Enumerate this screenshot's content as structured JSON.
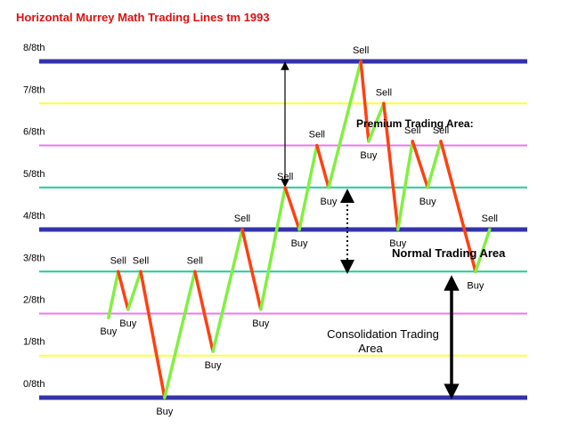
{
  "chart_data": {
    "type": "line",
    "title": "Horizontal Murrey Math Trading Lines tm 1993",
    "ylim": [
      -0.25,
      8.5
    ],
    "yticks": [
      {
        "value": 0,
        "label": "0/8th"
      },
      {
        "value": 1,
        "label": "1/8th"
      },
      {
        "value": 2,
        "label": "2/8th"
      },
      {
        "value": 3,
        "label": "3/8th"
      },
      {
        "value": 4,
        "label": "4/8th"
      },
      {
        "value": 5,
        "label": "5/8th"
      },
      {
        "value": 6,
        "label": "6/8th"
      },
      {
        "value": 7,
        "label": "7/8th"
      },
      {
        "value": 8,
        "label": "8/8th"
      }
    ],
    "level_colors": [
      "#3333aa",
      "#ffff33",
      "#ee77ee",
      "#22cc99",
      "#3333aa",
      "#22cc99",
      "#ee77ee",
      "#ffff33",
      "#3333aa"
    ],
    "xlim": [
      0,
      100
    ],
    "x": [
      14.2,
      16.2,
      18.2,
      20.8,
      25.7,
      31.9,
      35.6,
      41.6,
      45.4,
      50.4,
      53.3,
      56.9,
      59.3,
      65.9,
      67.5,
      70.6,
      73.5,
      76.5,
      79.6,
      82.3,
      89.4,
      92.3
    ],
    "series": [
      {
        "values": [
          1.9,
          3,
          2.1,
          3,
          0,
          3,
          1.1,
          4,
          2.1,
          5,
          4,
          6,
          5,
          8,
          6.1,
          7,
          4,
          6.1,
          5,
          6.1,
          3,
          4
        ],
        "point_labels": [
          "Buy",
          "Sell",
          "Buy",
          "Sell",
          "Buy",
          "Sell",
          "Buy",
          "Sell",
          "Buy",
          "Sell",
          "Buy",
          "Sell",
          "Buy",
          "Sell",
          "Buy",
          "Sell",
          "Buy",
          "Sell",
          "Buy",
          "Sell",
          "Buy",
          "Sell"
        ],
        "up_color": "#80f040",
        "down_color": "#ff4010"
      }
    ],
    "annotations": [
      "Premium Trading Area:",
      "Normal Trading Area",
      "Consolidation Trading",
      "Area"
    ]
  }
}
